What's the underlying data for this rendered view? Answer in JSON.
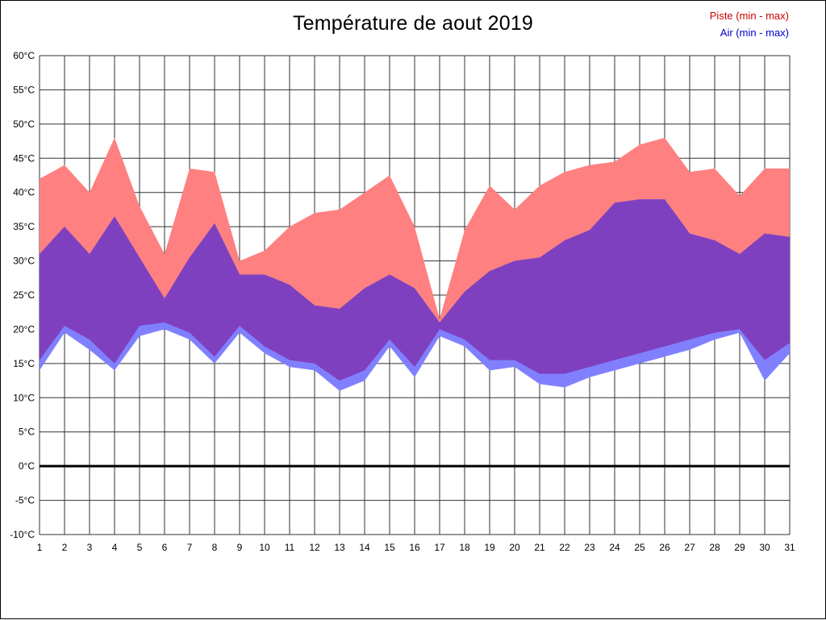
{
  "legend": [
    {
      "label": "Piste (min - max)",
      "color": "#cc0000"
    },
    {
      "label": "Air (min - max)",
      "color": "#0000cc"
    }
  ],
  "chart_data": {
    "type": "area",
    "title": "Température de aout 2019",
    "subtitle": "",
    "xlabel": "",
    "ylabel": "",
    "categories": [
      "1",
      "2",
      "3",
      "4",
      "5",
      "6",
      "7",
      "8",
      "9",
      "10",
      "11",
      "12",
      "13",
      "14",
      "15",
      "16",
      "17",
      "18",
      "19",
      "20",
      "21",
      "22",
      "23",
      "24",
      "25",
      "26",
      "27",
      "28",
      "29",
      "30",
      "31"
    ],
    "series": [
      {
        "name": "Piste max",
        "values": [
          42,
          44,
          40,
          48,
          38,
          31,
          43.5,
          43,
          30,
          31.5,
          35,
          37,
          37.5,
          40,
          42.5,
          35,
          21.5,
          34.5,
          41,
          37.5,
          41,
          43,
          44,
          44.5,
          47,
          48,
          43,
          43.5,
          39.5,
          43.5,
          43.5
        ]
      },
      {
        "name": "Piste min",
        "values": [
          15.5,
          20.5,
          18.5,
          15,
          20.5,
          21,
          19.5,
          16,
          20.5,
          17.5,
          15.5,
          15,
          12.5,
          14,
          18.5,
          14.5,
          20,
          18.5,
          15.5,
          15.5,
          13.5,
          13.5,
          14.5,
          15.5,
          16.5,
          17.5,
          18.5,
          19.5,
          20,
          15.5,
          18
        ]
      },
      {
        "name": "Air max",
        "values": [
          31,
          35,
          31,
          36.5,
          30.5,
          24.5,
          30.5,
          35.5,
          28,
          28,
          26.5,
          23.5,
          23,
          26,
          28,
          26,
          21,
          25.5,
          28.5,
          30,
          30.5,
          33,
          34.5,
          38.5,
          39,
          39,
          34,
          33,
          31,
          34,
          33.5
        ]
      },
      {
        "name": "Air min",
        "values": [
          14,
          19.5,
          17,
          14,
          19,
          20,
          18.5,
          15,
          19.5,
          16.5,
          14.5,
          14,
          11,
          12.5,
          17.5,
          13,
          19,
          17.5,
          14,
          14.5,
          12,
          11.5,
          13,
          14,
          15,
          16,
          17,
          18.5,
          19.5,
          12.5,
          16.5
        ]
      }
    ],
    "ylim": [
      -10,
      60
    ],
    "y_tick_step": 5,
    "y_tick_labels": [
      "60°C",
      "55°C",
      "50°C",
      "45°C",
      "40°C",
      "35°C",
      "30°C",
      "25°C",
      "20°C",
      "15°C",
      "10°C",
      "5°C",
      "0°C",
      "-5°C",
      "-10°C"
    ],
    "x_tick_labels": [
      "1",
      "2",
      "3",
      "4",
      "5",
      "6",
      "7",
      "8",
      "9",
      "10",
      "11",
      "12",
      "13",
      "14",
      "15",
      "16",
      "17",
      "18",
      "19",
      "20",
      "21",
      "22",
      "23",
      "24",
      "25",
      "26",
      "27",
      "28",
      "29",
      "30",
      "31"
    ],
    "grid": true,
    "legend_position": "top-right",
    "colors": {
      "piste_band": "#ff8080",
      "air_band": "#8080ff",
      "overlap_band": "#7f40bf",
      "gridline": "#333333",
      "zero_line": "#000000",
      "tick_text": "#000000"
    }
  }
}
